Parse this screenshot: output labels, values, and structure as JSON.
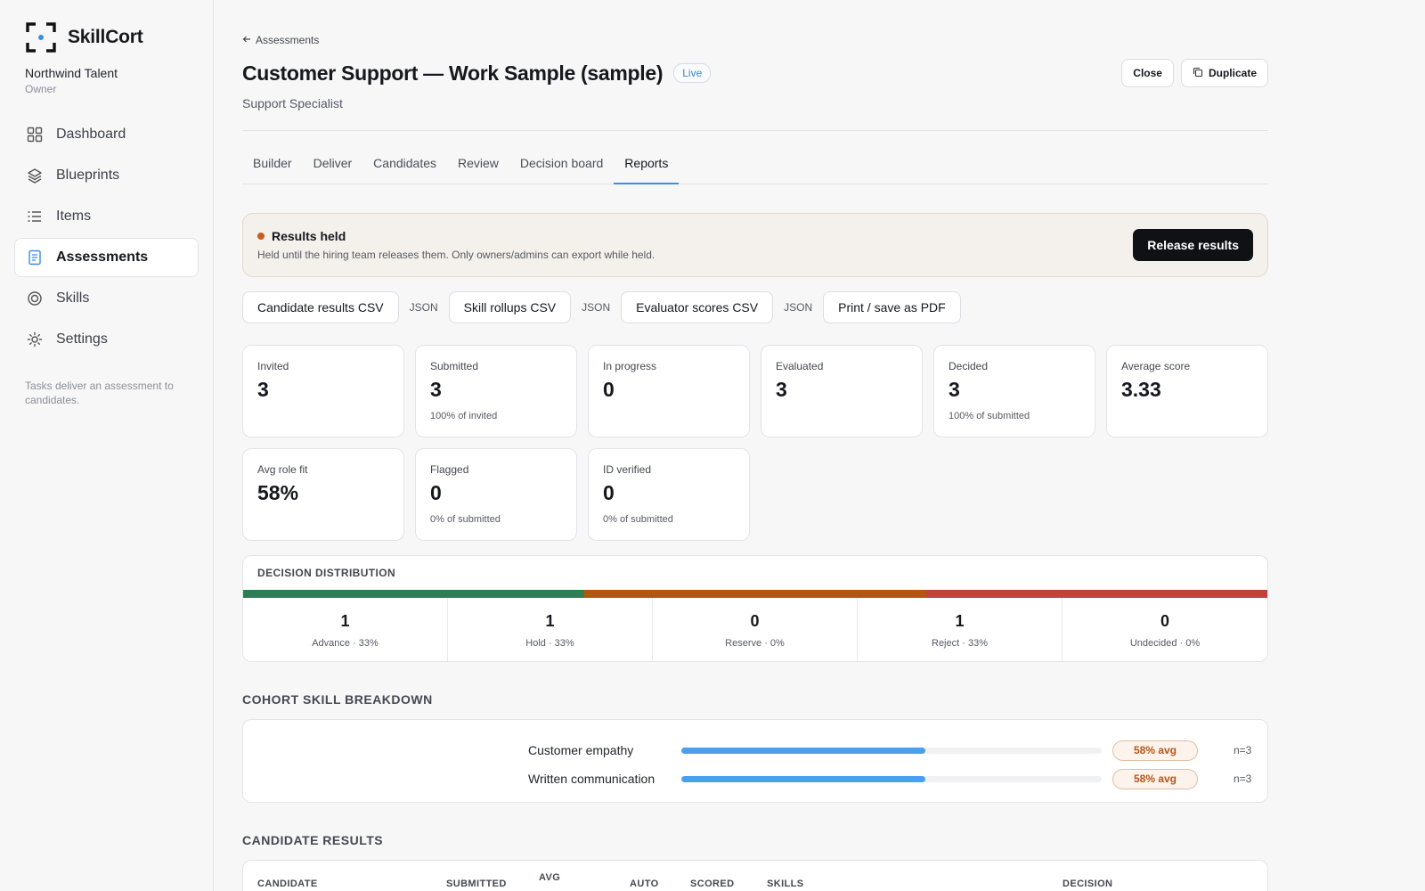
{
  "brand": {
    "name": "SkillCort"
  },
  "org": {
    "name": "Northwind Talent",
    "role": "Owner"
  },
  "nav": {
    "items": [
      {
        "label": "Dashboard",
        "icon": "grid-icon"
      },
      {
        "label": "Blueprints",
        "icon": "layers-icon"
      },
      {
        "label": "Items",
        "icon": "list-icon"
      },
      {
        "label": "Assessments",
        "icon": "clipboard-icon",
        "active": true
      },
      {
        "label": "Skills",
        "icon": "target-icon"
      },
      {
        "label": "Settings",
        "icon": "sun-gear-icon"
      }
    ],
    "note": "Tasks deliver an assessment to candidates."
  },
  "header": {
    "back_label": "Assessments",
    "title": "Customer Support — Work Sample (sample)",
    "status": "Live",
    "subtitle": "Support Specialist",
    "close_label": "Close",
    "duplicate_label": "Duplicate"
  },
  "tabs": [
    {
      "label": "Builder"
    },
    {
      "label": "Deliver"
    },
    {
      "label": "Candidates"
    },
    {
      "label": "Review"
    },
    {
      "label": "Decision board"
    },
    {
      "label": "Reports",
      "active": true
    }
  ],
  "banner": {
    "title": "Results held",
    "desc": "Held until the hiring team releases them. Only owners/admins can export while held.",
    "button": "Release results"
  },
  "exports": {
    "candidate_csv": "Candidate results CSV",
    "skill_csv": "Skill rollups CSV",
    "evaluator_csv": "Evaluator scores CSV",
    "json": "JSON",
    "pdf": "Print / save as PDF"
  },
  "stats": [
    {
      "label": "Invited",
      "value": "3",
      "sub": ""
    },
    {
      "label": "Submitted",
      "value": "3",
      "sub": "100% of invited"
    },
    {
      "label": "In progress",
      "value": "0",
      "sub": ""
    },
    {
      "label": "Evaluated",
      "value": "3",
      "sub": ""
    },
    {
      "label": "Decided",
      "value": "3",
      "sub": "100% of submitted"
    },
    {
      "label": "Average score",
      "value": "3.33",
      "sub": ""
    },
    {
      "label": "Avg role fit",
      "value": "58%",
      "sub": ""
    },
    {
      "label": "Flagged",
      "value": "0",
      "sub": "0% of submitted"
    },
    {
      "label": "ID verified",
      "value": "0",
      "sub": "0% of submitted"
    }
  ],
  "distribution": {
    "title": "DECISION DISTRIBUTION",
    "colors": {
      "advance": "#2e7d55",
      "hold": "#b5560f",
      "reserve": "#8a8f98",
      "reject": "#c2413b",
      "undecided": "#d0d3d8"
    },
    "items": [
      {
        "key": "advance",
        "count": "1",
        "label": "Advance · 33%",
        "fraction": 0.3333
      },
      {
        "key": "hold",
        "count": "1",
        "label": "Hold · 33%",
        "fraction": 0.3333
      },
      {
        "key": "reserve",
        "count": "0",
        "label": "Reserve · 0%",
        "fraction": 0
      },
      {
        "key": "reject",
        "count": "1",
        "label": "Reject · 33%",
        "fraction": 0.3334
      },
      {
        "key": "undecided",
        "count": "0",
        "label": "Undecided · 0%",
        "fraction": 0
      }
    ]
  },
  "skills": {
    "title": "COHORT SKILL BREAKDOWN",
    "rows": [
      {
        "name": "Customer empathy",
        "fraction": 0.58,
        "badge": "58% avg",
        "n": "n=3"
      },
      {
        "name": "Written communication",
        "fraction": 0.58,
        "badge": "58% avg",
        "n": "n=3"
      }
    ]
  },
  "results": {
    "title": "CANDIDATE RESULTS",
    "columns": [
      "CANDIDATE",
      "SUBMITTED",
      "AVG",
      "AUTO",
      "SCORED",
      "SKILLS",
      "DECISION"
    ]
  }
}
